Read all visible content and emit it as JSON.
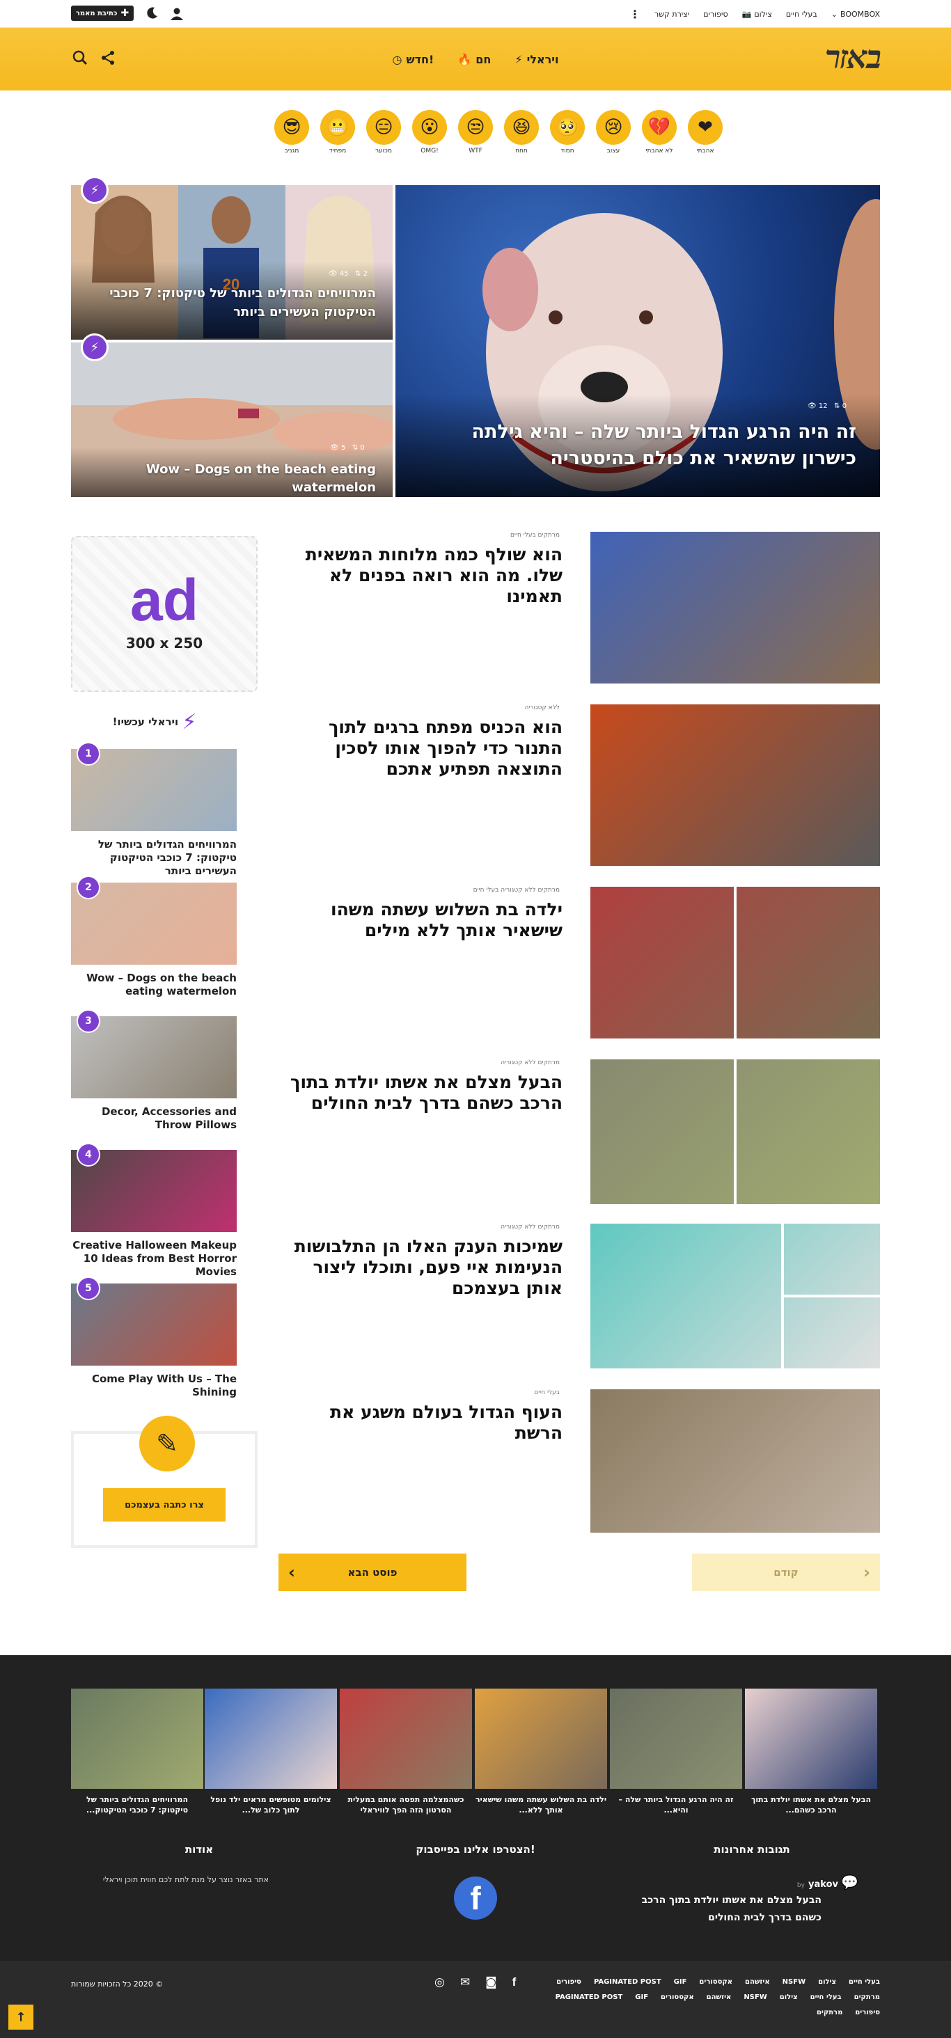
{
  "topbar": {
    "nav": [
      {
        "label": "BOOMBOX",
        "icon": "chevron-down-icon"
      },
      {
        "label": "בעלי חיים",
        "icon": ""
      },
      {
        "label": "צילום",
        "icon": "camera-icon"
      },
      {
        "label": "סיפורים",
        "icon": ""
      },
      {
        "label": "יצירת קשר",
        "icon": ""
      }
    ],
    "write_button": "כתיבת מאמר"
  },
  "header": {
    "logo": "באזר",
    "nav": [
      {
        "label": "ויראלי",
        "icon": "lightning-icon"
      },
      {
        "label": "חם",
        "icon": "flame-icon"
      },
      {
        "label": "חדש!",
        "icon": "clock-icon"
      }
    ]
  },
  "reactions": [
    {
      "label": "אהבתי",
      "glyph": "❤"
    },
    {
      "label": "לא אהבתי",
      "glyph": "💔"
    },
    {
      "label": "עצוב",
      "glyph": "😢"
    },
    {
      "label": "חמוד",
      "glyph": "🥺"
    },
    {
      "label": "חחח",
      "glyph": "😆"
    },
    {
      "label": "WTF",
      "glyph": "😒"
    },
    {
      "label": "OMG!",
      "glyph": "😮"
    },
    {
      "label": "מכוער",
      "glyph": "😑"
    },
    {
      "label": "מפחיד",
      "glyph": "😬"
    },
    {
      "label": "מגניב",
      "glyph": "😎"
    }
  ],
  "hero": {
    "main": {
      "title": "זה היה הרגע הגדול ביותר שלה – והיא גילתה כישרון שהשאיר את כולם בהיסטריה",
      "views": "12",
      "shares": "0"
    },
    "top": {
      "title": "המרוויחים הגדולים ביותר של טיקטוק: 7 כוכבי הטיקטוק העשירים ביותר",
      "views": "45",
      "shares": "2"
    },
    "bottom": {
      "title": "Wow – Dogs on the beach eating watermelon",
      "views": "5",
      "shares": "0"
    }
  },
  "articles": [
    {
      "meta": "מרתקים   בעלי חיים",
      "title": "הוא שולף כמה מלוחות המשאית שלו. מה הוא רואה בפנים לא תאמינו"
    },
    {
      "meta": "ללא קטגוריה",
      "title": "הוא הכניס מפתח ברגים לתוך התנור כדי להפוך אותו לסכין התוצאה תפתיע אתכם"
    },
    {
      "meta": "מרתקים   ללא קטגוריה   בעלי חיים",
      "title": "ילדה בת השלוש עשתה משהו שישאיר אותך ללא מילים"
    },
    {
      "meta": "מרתקים   ללא קטגוריה",
      "title": "הבעל מצלם את אשתו יולדת בתוך הרכב כשהם בדרך לבית החולים"
    },
    {
      "meta": "מרתקים   ללא קטגוריה",
      "title": "שמיכות הענק האלו הן התלבושות הנעימות איי פעם, ותוכלו ליצור אותן בעצמכם"
    },
    {
      "meta": "בעלי חיים",
      "title": "העוף הגדול בעולם משגע את הרשת"
    }
  ],
  "ad": {
    "text": "ad",
    "size": "300 x 250"
  },
  "sidebar": {
    "heading": "ויראלי עכשיו!",
    "items": [
      {
        "num": "1",
        "title": "המרוויחים הגדולים ביותר של טיקטוק: 7 כוכבי הטיקטוק העשירים ביותר"
      },
      {
        "num": "2",
        "title": "Wow – Dogs on the beach eating watermelon"
      },
      {
        "num": "3",
        "title": "Decor, Accessories and Throw Pillows"
      },
      {
        "num": "4",
        "title": "Creative Halloween Makeup 10 Ideas from Best Horror Movies"
      },
      {
        "num": "5",
        "title": "Come Play With Us – The Shining"
      }
    ],
    "write_cta": "צרו כתבה בעצמכם"
  },
  "pagination": {
    "prev": "קודם",
    "next": "פוסט הבא"
  },
  "footer": {
    "thumbs": [
      "הבעל מצלם את אשתו יולדת בתוך הרכב כשהם...",
      "זה היה הרגע הגדול ביותר שלה – והיא...",
      "ילדה בת השלוש עשתה משהו שישאיר אותך ללא...",
      "כשהמצלמה תפסה אותם במעלית הסרטון הזה הפך לוויראלי",
      "צילומים מטופשים מראים ילד נופל לתוך כלוב של...",
      "המרוויחים הגדולים ביותר של טיקטוק: 7 כוכבי הטיקטוק..."
    ],
    "about_heading": "אודות",
    "about_text": "אתר באזר נוצר על מנת לתת לכם חווית תוכן ויראלי",
    "facebook_heading": "הצטרפו אלינו בפייסבוק!",
    "comments_heading": "תגובות אחרונות",
    "comment_by": "by",
    "comment_user": "yakov",
    "comment_text": "הבעל מצלם את אשתו יולדת בתוך הרכב כשהם בדרך לבית החולים"
  },
  "bottom": {
    "copyright": "© 2020 כל הזכויות שמורות",
    "links_row1": [
      "בעלי חיים",
      "צילום",
      "NSFW",
      "איזשהם",
      "אקססורים",
      "GIF",
      "PAGINATED POST",
      "סיפורים"
    ],
    "links_row2": [
      "מרתקים",
      "בעלי חיים",
      "צילום",
      "NSFW",
      "איזשהם",
      "אקססורים",
      "GIF",
      "PAGINATED POST"
    ],
    "links_row3": [
      "סיפורים",
      "מרתקים"
    ]
  }
}
